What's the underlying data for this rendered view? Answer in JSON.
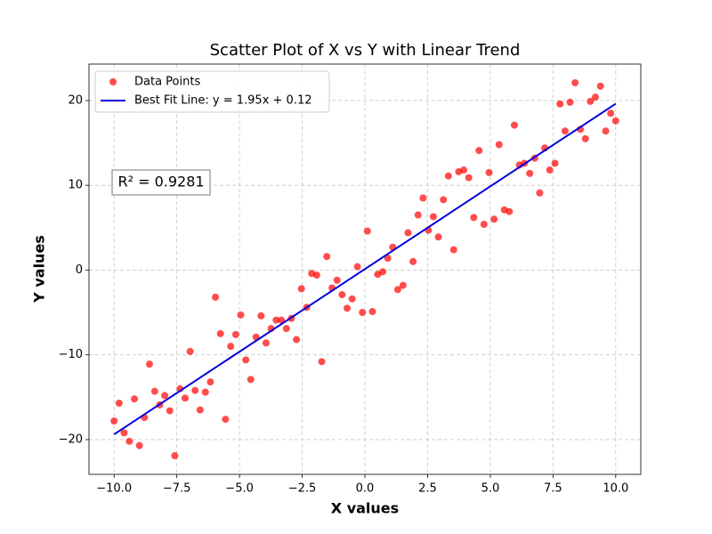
{
  "chart_data": {
    "type": "scatter",
    "title": "Scatter Plot of X vs Y with Linear Trend",
    "xlabel": "X values",
    "ylabel": "Y values",
    "annotation": "R² = 0.9281",
    "legend": "upper left",
    "grid": true,
    "xlim": [
      -11,
      11
    ],
    "ylim": [
      -24.1,
      24.3
    ],
    "xticks": [
      {
        "value": -10,
        "label": "−10.0"
      },
      {
        "value": -7.5,
        "label": "−7.5"
      },
      {
        "value": -5,
        "label": "−5.0"
      },
      {
        "value": -2.5,
        "label": "−2.5"
      },
      {
        "value": 0,
        "label": "0.0"
      },
      2.5,
      {
        "value": 5,
        "label": "5.0"
      },
      7.5,
      {
        "value": 10,
        "label": "10.0"
      }
    ],
    "yticks": [
      {
        "value": -20,
        "label": "−20"
      },
      {
        "value": -10,
        "label": "−10"
      },
      0,
      10,
      20
    ],
    "series": [
      {
        "name": "Data Points",
        "type": "scatter",
        "color": "#ff0000",
        "x": [
          -10.0,
          -9.8,
          -9.6,
          -9.39,
          -9.19,
          -8.99,
          -8.79,
          -8.59,
          -8.38,
          -8.18,
          -7.98,
          -7.78,
          -7.58,
          -7.37,
          -7.17,
          -6.97,
          -6.77,
          -6.57,
          -6.36,
          -6.16,
          -5.96,
          -5.76,
          -5.56,
          -5.35,
          -5.15,
          -4.95,
          -4.75,
          -4.55,
          -4.34,
          -4.14,
          -3.94,
          -3.74,
          -3.54,
          -3.33,
          -3.13,
          -2.93,
          -2.73,
          -2.53,
          -2.32,
          -2.12,
          -1.92,
          -1.72,
          -1.52,
          -1.31,
          -1.11,
          -0.91,
          -0.71,
          -0.51,
          -0.3,
          -0.1,
          0.1,
          0.3,
          0.51,
          0.71,
          0.91,
          1.11,
          1.31,
          1.52,
          1.72,
          1.92,
          2.12,
          2.32,
          2.53,
          2.73,
          2.93,
          3.13,
          3.33,
          3.54,
          3.74,
          3.94,
          4.14,
          4.34,
          4.55,
          4.75,
          4.95,
          5.15,
          5.35,
          5.56,
          5.76,
          5.96,
          6.16,
          6.36,
          6.57,
          6.77,
          6.97,
          7.17,
          7.37,
          7.58,
          7.78,
          7.98,
          8.18,
          8.38,
          8.59,
          8.79,
          8.99,
          9.19,
          9.39,
          9.6,
          9.8,
          10.0
        ],
        "values": [
          -17.8,
          -15.7,
          -19.2,
          -20.2,
          -15.2,
          -20.7,
          -17.4,
          -11.1,
          -14.3,
          -15.9,
          -14.8,
          -16.6,
          -21.9,
          -14.0,
          -15.1,
          -9.6,
          -14.2,
          -16.5,
          -14.4,
          -13.2,
          -3.2,
          -7.5,
          -17.6,
          -9.0,
          -7.6,
          -5.3,
          -10.6,
          -12.9,
          -7.9,
          -5.4,
          -8.6,
          -6.9,
          -5.9,
          -5.9,
          -6.9,
          -5.7,
          -8.2,
          -2.2,
          -4.4,
          -0.4,
          -0.6,
          -10.8,
          1.6,
          -2.1,
          -1.2,
          -2.9,
          -4.5,
          -3.4,
          0.4,
          -5.0,
          4.6,
          -4.9,
          -0.5,
          -0.2,
          1.4,
          2.7,
          -2.3,
          -1.8,
          4.4,
          1.0,
          6.5,
          8.5,
          4.7,
          6.3,
          3.9,
          8.3,
          11.1,
          2.4,
          11.6,
          11.8,
          10.9,
          6.2,
          14.1,
          5.4,
          11.5,
          6.0,
          14.8,
          7.1,
          6.9,
          17.1,
          12.4,
          12.6,
          11.4,
          13.2,
          9.1,
          14.4,
          11.8,
          12.6,
          19.6,
          16.4,
          19.8,
          22.1,
          16.6,
          15.5,
          19.9,
          20.4,
          21.7,
          16.4,
          18.5,
          17.6
        ]
      },
      {
        "name": "Best Fit Line: y = 1.95x + 0.12",
        "type": "line",
        "color": "#0000dd",
        "x": [
          -10,
          10
        ],
        "values": [
          -19.38,
          19.62
        ]
      }
    ]
  }
}
